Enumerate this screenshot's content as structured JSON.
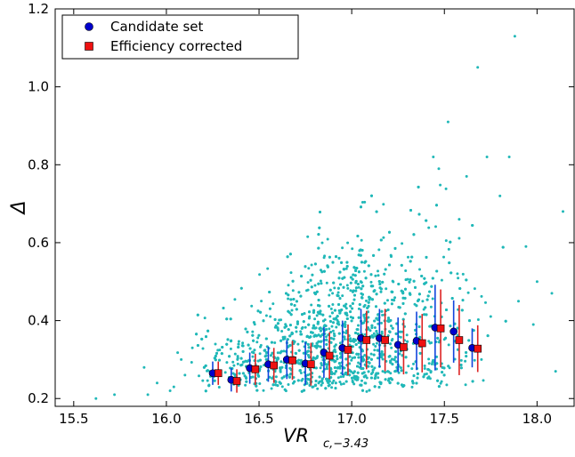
{
  "chart_data": {
    "type": "scatter",
    "title": "",
    "xlabel": "VR",
    "xlabel_sub": "c,−3.43",
    "ylabel": "Δ",
    "xlim": [
      15.4,
      18.2
    ],
    "ylim": [
      0.18,
      1.2
    ],
    "x_ticks": [
      "15.5",
      "16.0",
      "16.5",
      "17.0",
      "17.5",
      "18.0"
    ],
    "x_tick_values": [
      15.5,
      16.0,
      16.5,
      17.0,
      17.5,
      18.0
    ],
    "y_ticks": [
      "0.2",
      "0.4",
      "0.6",
      "0.8",
      "1.0",
      "1.2"
    ],
    "y_tick_values": [
      0.2,
      0.4,
      0.6,
      0.8,
      1.0,
      1.2
    ],
    "grid": false,
    "legend_position": "top-left",
    "colors": {
      "scatter": "#20b8b8",
      "candidate": "#0000cc",
      "corrected": "#ee1111",
      "candidate_err": "#1144dd",
      "corrected_err": "#dd2222"
    },
    "series": [
      {
        "name": "Candidate set",
        "marker": "circle",
        "x": [
          16.25,
          16.35,
          16.45,
          16.55,
          16.65,
          16.75,
          16.85,
          16.95,
          17.05,
          17.15,
          17.25,
          17.35,
          17.45,
          17.55,
          17.65
        ],
        "y": [
          0.265,
          0.248,
          0.278,
          0.288,
          0.3,
          0.29,
          0.318,
          0.33,
          0.355,
          0.355,
          0.338,
          0.348,
          0.382,
          0.372,
          0.33
        ],
        "err": [
          0.03,
          0.03,
          0.04,
          0.045,
          0.05,
          0.055,
          0.065,
          0.07,
          0.075,
          0.075,
          0.07,
          0.075,
          0.11,
          0.08,
          0.05
        ]
      },
      {
        "name": "Efficiency corrected",
        "marker": "square",
        "x": [
          16.28,
          16.38,
          16.48,
          16.58,
          16.68,
          16.78,
          16.88,
          16.98,
          17.08,
          17.18,
          17.28,
          17.38,
          17.48,
          17.58,
          17.68
        ],
        "y": [
          0.265,
          0.245,
          0.275,
          0.285,
          0.298,
          0.288,
          0.31,
          0.325,
          0.35,
          0.35,
          0.332,
          0.342,
          0.38,
          0.35,
          0.328
        ],
        "err": [
          0.03,
          0.03,
          0.04,
          0.045,
          0.05,
          0.055,
          0.06,
          0.065,
          0.075,
          0.08,
          0.07,
          0.075,
          0.1,
          0.09,
          0.06
        ]
      }
    ],
    "scatter_points": {
      "outliers_x": [
        17.88,
        17.68,
        17.52,
        17.44,
        17.47,
        18.14,
        17.85,
        17.73,
        17.62,
        17.94,
        18.08,
        18.1,
        17.98,
        15.62,
        15.72,
        15.88,
        15.9,
        15.95,
        16.02,
        16.04,
        16.08,
        16.1,
        16.14,
        17.8,
        17.7,
        17.58,
        17.9,
        18.0
      ],
      "outliers_y": [
        1.13,
        1.05,
        0.91,
        0.82,
        0.79,
        0.68,
        0.82,
        0.82,
        0.77,
        0.59,
        0.47,
        0.27,
        0.39,
        0.2,
        0.21,
        0.28,
        0.21,
        0.24,
        0.22,
        0.23,
        0.3,
        0.26,
        0.33,
        0.72,
        0.3,
        0.66,
        0.45,
        0.5
      ]
    }
  }
}
